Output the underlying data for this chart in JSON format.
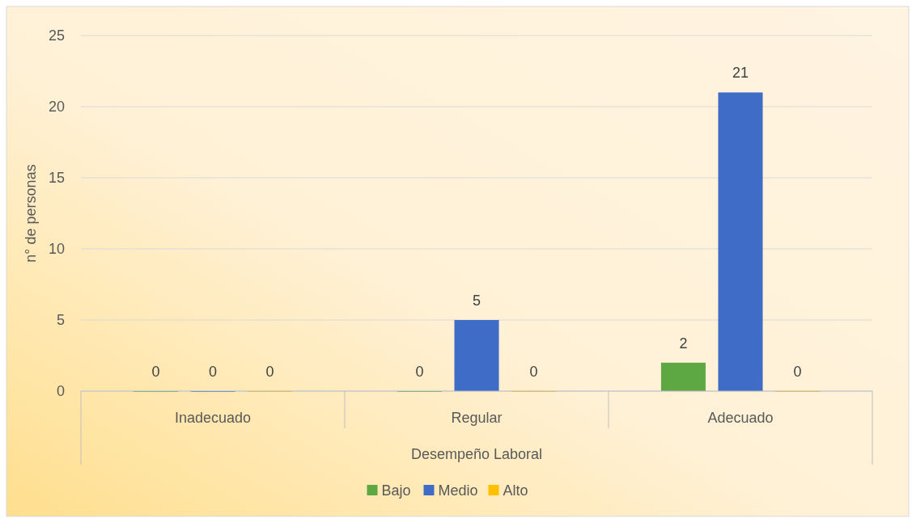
{
  "chart_data": {
    "type": "bar",
    "xlabel": "Desempeño Laboral",
    "ylabel": "n° de personas",
    "categories": [
      "Inadecuado",
      "Regular",
      "Adecuado"
    ],
    "series": [
      {
        "name": "Bajo",
        "color": "#5ea843",
        "values": [
          0,
          0,
          2
        ]
      },
      {
        "name": "Medio",
        "color": "#3f6cc6",
        "values": [
          0,
          5,
          21
        ]
      },
      {
        "name": "Alto",
        "color": "#ffc000",
        "values": [
          0,
          0,
          0
        ]
      }
    ],
    "ylim": [
      0,
      25
    ],
    "yticks": [
      0,
      5,
      10,
      15,
      20,
      25
    ],
    "grid": "y",
    "legend": "bottom",
    "data_labels": true
  }
}
